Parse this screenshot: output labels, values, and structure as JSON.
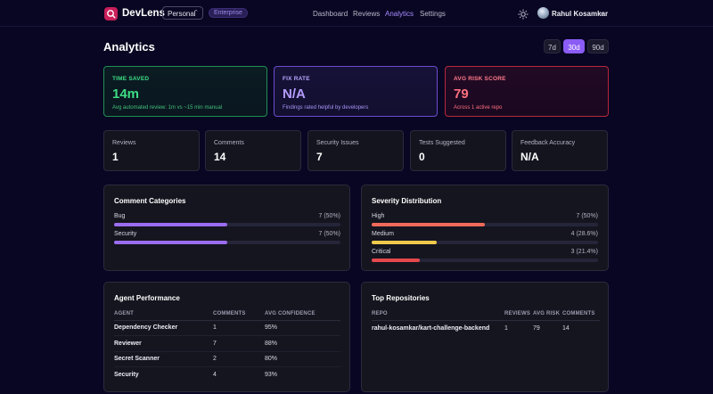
{
  "app": {
    "name": "DevLens",
    "workspace": "Personal",
    "plan": "Enterprise"
  },
  "nav": [
    {
      "label": "Dashboard",
      "active": false
    },
    {
      "label": "Reviews",
      "active": false
    },
    {
      "label": "Analytics",
      "active": true
    },
    {
      "label": "Settings",
      "active": false
    }
  ],
  "user": {
    "name": "Rahul Kosamkar"
  },
  "page": {
    "title": "Analytics"
  },
  "ranges": [
    {
      "label": "7d",
      "active": false
    },
    {
      "label": "30d",
      "active": true
    },
    {
      "label": "90d",
      "active": false
    }
  ],
  "hero": {
    "time_saved": {
      "label": "TIME SAVED",
      "value": "14m",
      "note": "Avg automated review: 1m vs ~15 min manual"
    },
    "fix_rate": {
      "label": "FIX RATE",
      "value": "N/A",
      "note": "Findings rated helpful by developers"
    },
    "risk": {
      "label": "AVG RISK SCORE",
      "value": "79",
      "note": "Across 1 active repo"
    }
  },
  "stats": [
    {
      "label": "Reviews",
      "value": "1"
    },
    {
      "label": "Comments",
      "value": "14"
    },
    {
      "label": "Security Issues",
      "value": "7"
    },
    {
      "label": "Tests Suggested",
      "value": "0"
    },
    {
      "label": "Feedback Accuracy",
      "value": "N/A"
    }
  ],
  "comment_categories": {
    "title": "Comment Categories",
    "items": [
      {
        "name": "Bug",
        "count": "7 (50%)",
        "fraction": 0.5,
        "color": "#9b6cf0"
      },
      {
        "name": "Security",
        "count": "7 (50%)",
        "fraction": 0.5,
        "color": "#9b6cf0"
      }
    ]
  },
  "severity": {
    "title": "Severity Distribution",
    "items": [
      {
        "name": "High",
        "count": "7 (50%)",
        "fraction": 0.5,
        "color": "#f06a5a"
      },
      {
        "name": "Medium",
        "count": "4 (28.6%)",
        "fraction": 0.286,
        "color": "#f2c94c"
      },
      {
        "name": "Critical",
        "count": "3 (21.4%)",
        "fraction": 0.214,
        "color": "#e5484d"
      }
    ]
  },
  "agent_performance": {
    "title": "Agent Performance",
    "columns": [
      "AGENT",
      "COMMENTS",
      "AVG CONFIDENCE"
    ],
    "rows": [
      {
        "agent": "Dependency Checker",
        "comments": "1",
        "confidence": "95%"
      },
      {
        "agent": "Reviewer",
        "comments": "7",
        "confidence": "88%"
      },
      {
        "agent": "Secret Scanner",
        "comments": "2",
        "confidence": "80%"
      },
      {
        "agent": "Security",
        "comments": "4",
        "confidence": "93%"
      }
    ]
  },
  "top_repositories": {
    "title": "Top Repositories",
    "columns": [
      "REPO",
      "REVIEWS",
      "AVG RISK",
      "COMMENTS"
    ],
    "rows": [
      {
        "repo": "rahul-kosamkar/kart-challenge-backend",
        "reviews": "1",
        "risk": "79",
        "comments": "14"
      }
    ]
  }
}
